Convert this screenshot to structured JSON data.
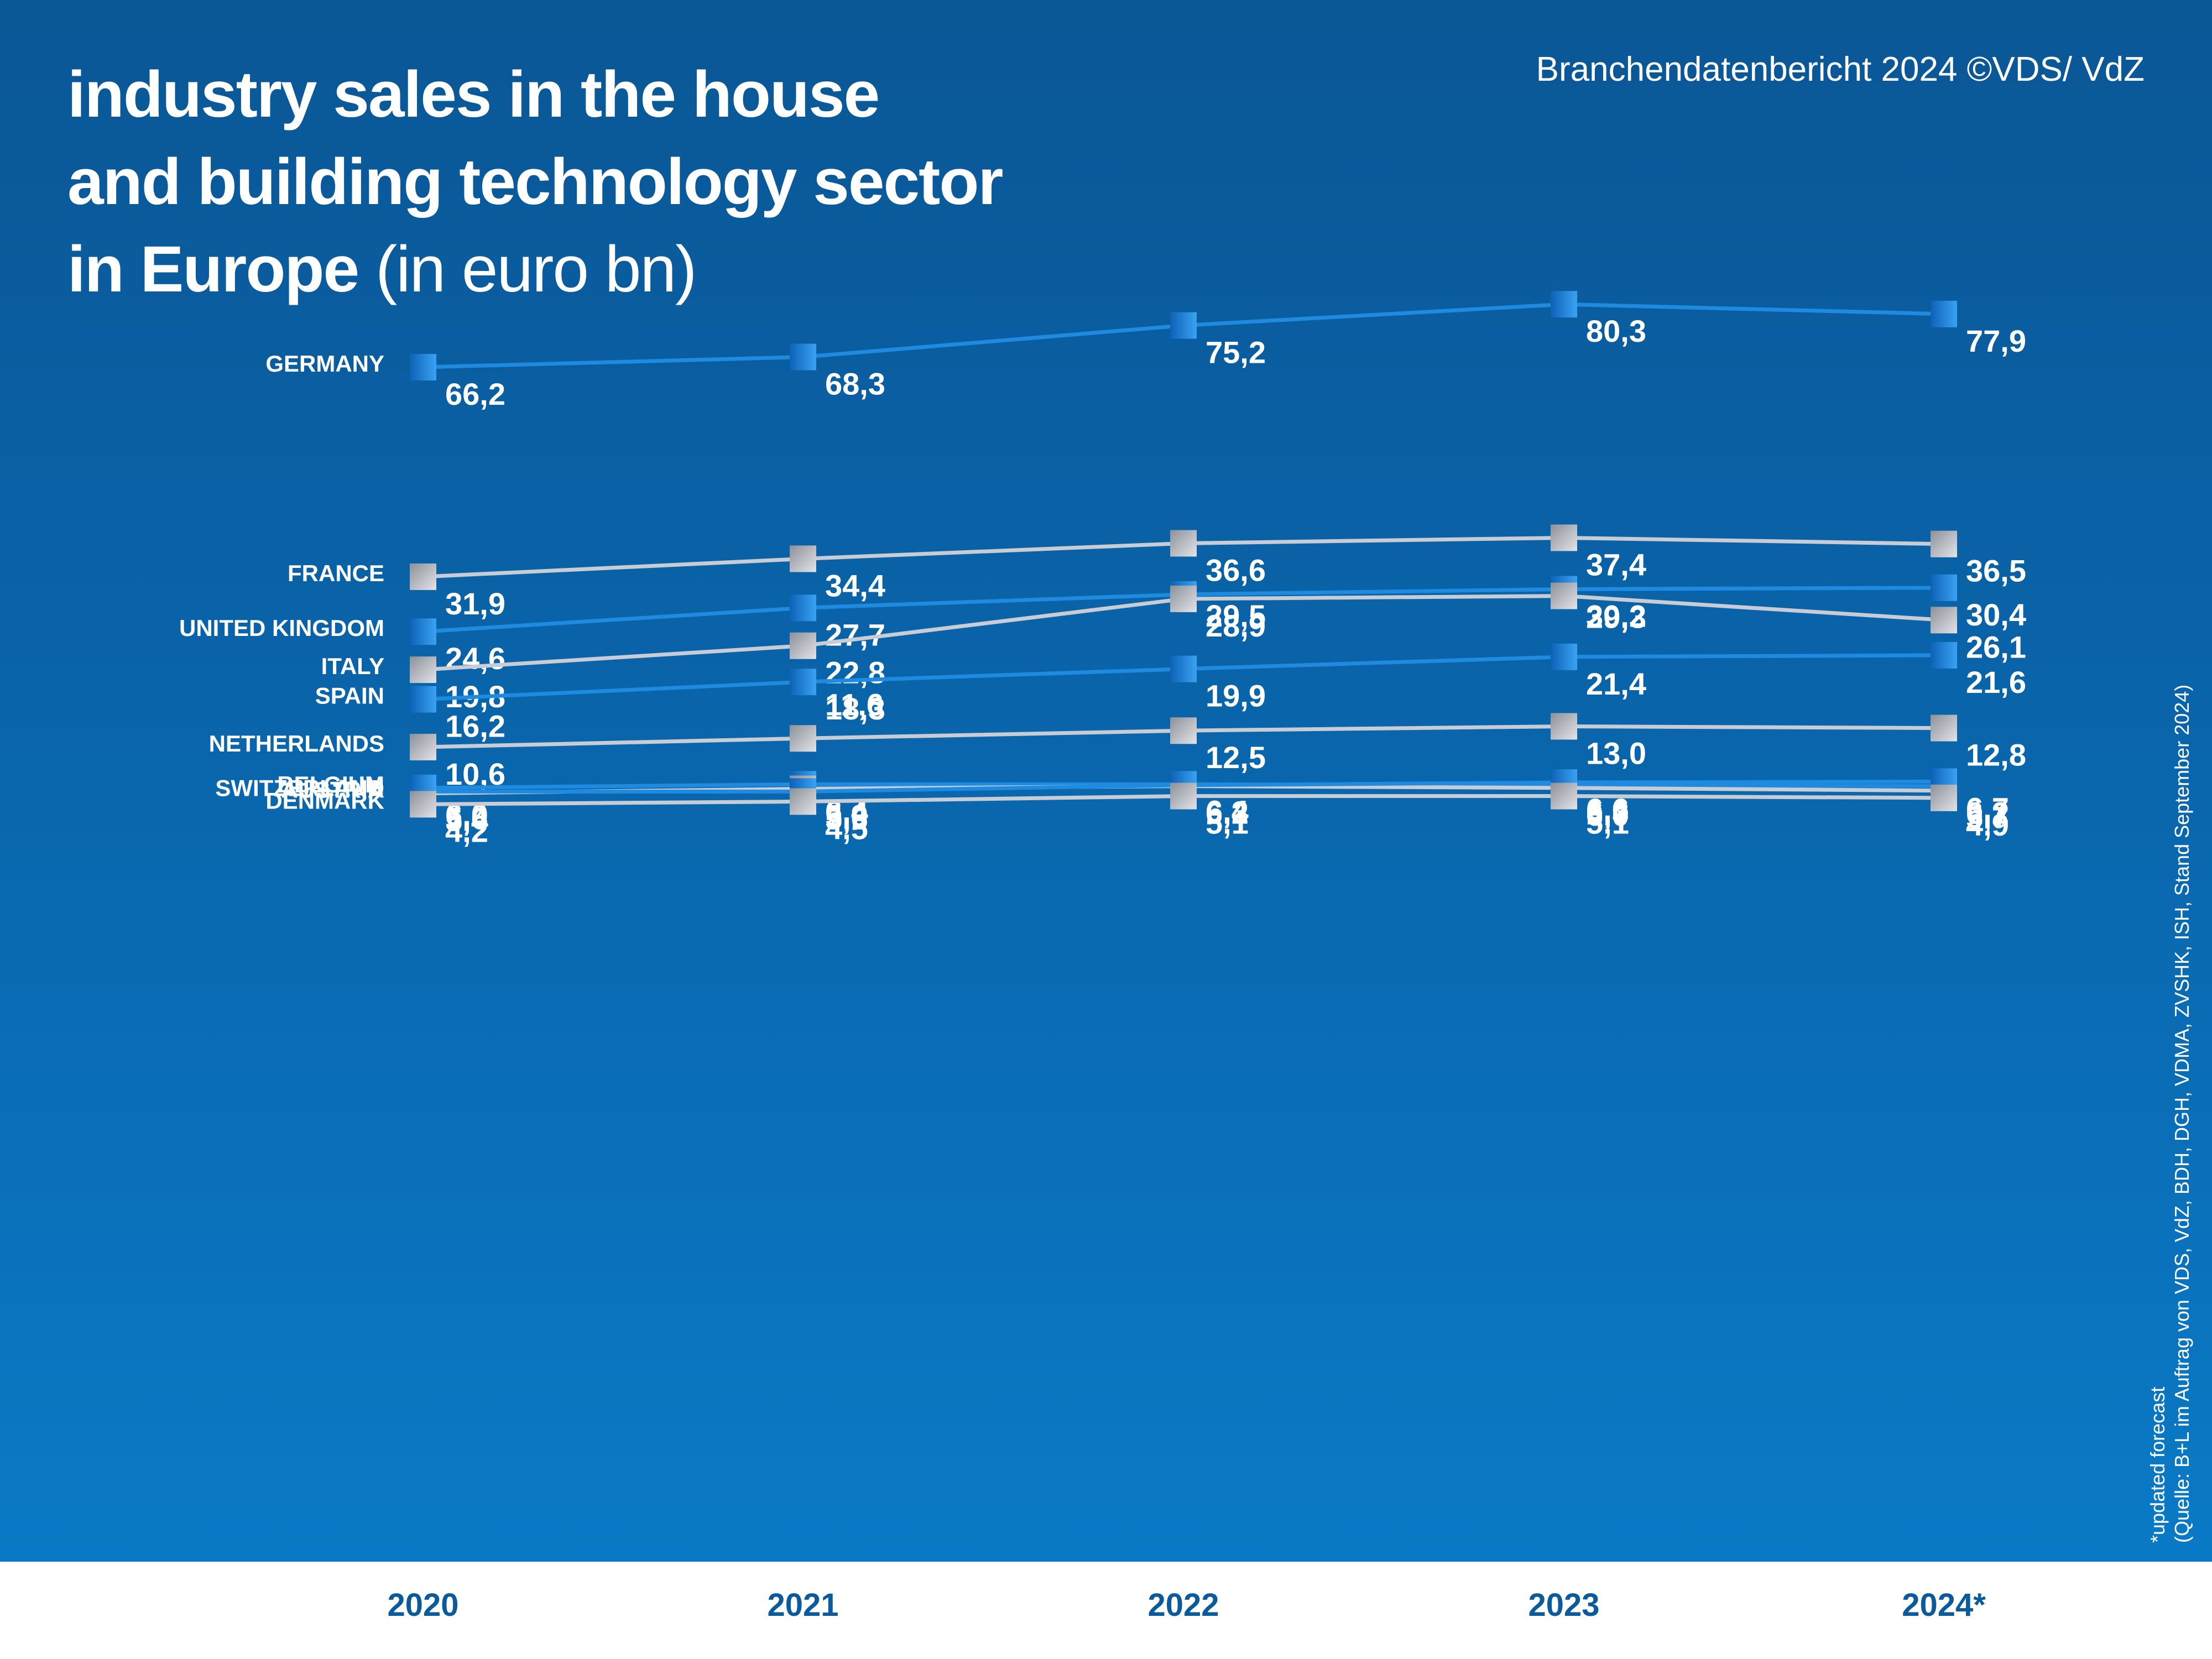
{
  "title": {
    "line1": "industry sales in the house",
    "line2": "and building technology sector",
    "line3_bold": "in Europe",
    "line3_light": "(in euro bn)"
  },
  "source_top": "Branchendatenbericht 2024 ©VDS/ VdZ",
  "footnote": {
    "forecast": "*updated forecast",
    "source": "(Quelle: B+L im Auftrag von VDS, VdZ, BDH, DGH, VDMA, ZVSHK, ISH, Stand September 2024)"
  },
  "colors": {
    "background_top": "#0a5796",
    "background_bottom": "#0a7ac6",
    "blue_series": "#1e8be0",
    "grey_series": "#c8ccd4",
    "year_text": "#0a5a9c"
  },
  "chart_data": {
    "type": "line",
    "title": "industry sales in the house and building technology sector in Europe (in euro bn)",
    "unit": "euro bn",
    "categories": [
      "2020",
      "2021",
      "2022",
      "2023",
      "2024*"
    ],
    "series": [
      {
        "name": "GERMANY",
        "color": "blue",
        "values": [
          66.2,
          68.3,
          75.2,
          80.3,
          77.9
        ],
        "labels": [
          "66,2",
          "68,3",
          "75,2",
          "80,3",
          "77,9"
        ]
      },
      {
        "name": "FRANCE",
        "color": "grey",
        "values": [
          31.9,
          34.4,
          36.6,
          37.4,
          36.5
        ],
        "labels": [
          "31,9",
          "34,4",
          "36,6",
          "37,4",
          "36,5"
        ]
      },
      {
        "name": "UNITED KINGDOM",
        "color": "blue",
        "values": [
          24.6,
          27.7,
          29.5,
          30.2,
          30.4
        ],
        "labels": [
          "24,6",
          "27,7",
          "29,5",
          "30,2",
          "30,4"
        ]
      },
      {
        "name": "ITALY",
        "color": "grey",
        "values": [
          19.8,
          22.8,
          28.9,
          29.3,
          26.1
        ],
        "labels": [
          "19,8",
          "22,8",
          "28,9",
          "29,3",
          "26,1"
        ]
      },
      {
        "name": "SPAIN",
        "color": "blue",
        "values": [
          16.2,
          18.3,
          19.9,
          21.4,
          21.6
        ],
        "labels": [
          "16,2",
          "18,3",
          "19,9",
          "21,4",
          "21,6"
        ]
      },
      {
        "name": "NETHERLANDS",
        "color": "grey",
        "values": [
          10.6,
          11.6,
          12.5,
          13.0,
          12.8
        ],
        "labels": [
          "10,6",
          "11,6",
          "12,5",
          "13,0",
          "12,8"
        ]
      },
      {
        "name": "BELGIUM",
        "color": "blue",
        "values": [
          6.0,
          6.4,
          6.4,
          6.3,
          6.2
        ],
        "labels": [
          "6,0",
          "6,4",
          "6,4",
          "6,3",
          "6,2"
        ]
      },
      {
        "name": "AUSTRIA",
        "color": "grey",
        "values": [
          5.4,
          5.9,
          6.2,
          6.0,
          5.7
        ],
        "labels": [
          "5,4",
          "5,9",
          "6,2",
          "6,0",
          "5,7"
        ]
      },
      {
        "name": "SWITZERLAND",
        "color": "blue",
        "values": [
          5.6,
          5.6,
          6.3,
          6.6,
          6.7
        ],
        "labels": [
          "5,6",
          "5,6",
          "6,3",
          "6,6",
          "6,7"
        ]
      },
      {
        "name": "DENMARK",
        "color": "grey",
        "values": [
          4.2,
          4.5,
          5.1,
          5.1,
          4.9
        ],
        "labels": [
          "4,2",
          "4,5",
          "5,1",
          "5,1",
          "4,9"
        ]
      }
    ],
    "xlabel": "",
    "ylabel": "",
    "grid": false,
    "legend": "country names at left of each line"
  }
}
